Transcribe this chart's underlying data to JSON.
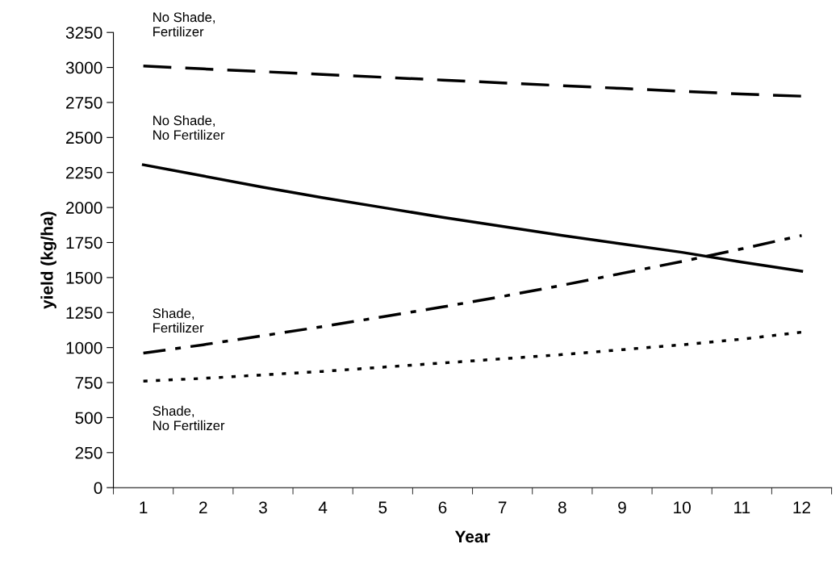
{
  "chart_data": {
    "type": "line",
    "xlabel": "Year",
    "ylabel": "yield (kg/ha)",
    "categories": [
      "1",
      "2",
      "3",
      "4",
      "5",
      "6",
      "7",
      "8",
      "9",
      "10",
      "11",
      "12"
    ],
    "ylim": [
      0,
      3250
    ],
    "yticks": [
      0,
      250,
      500,
      750,
      1000,
      1250,
      1500,
      1750,
      2000,
      2250,
      2500,
      2750,
      3000,
      3250
    ],
    "grid": false,
    "marker": "none",
    "series": [
      {
        "name": "No Shade,\nFertilizer",
        "color": "#000000",
        "line_style": "dashed",
        "values": [
          3010,
          2990,
          2970,
          2950,
          2930,
          2910,
          2890,
          2870,
          2850,
          2830,
          2810,
          2795
        ]
      },
      {
        "name": "No Shade,\nNo Fertilizer",
        "color": "#000000",
        "line_style": "solid",
        "values": [
          2305,
          2225,
          2145,
          2070,
          2000,
          1930,
          1865,
          1800,
          1740,
          1680,
          1610,
          1545
        ]
      },
      {
        "name": "Shade,\nFertilizer",
        "color": "#000000",
        "line_style": "dashdot",
        "values": [
          960,
          1020,
          1085,
          1150,
          1220,
          1290,
          1365,
          1445,
          1530,
          1615,
          1705,
          1800
        ]
      },
      {
        "name": "Shade,\nNo Fertilizer",
        "color": "#000000",
        "line_style": "dotted",
        "values": [
          760,
          780,
          805,
          830,
          860,
          890,
          920,
          950,
          985,
          1020,
          1060,
          1110
        ]
      }
    ]
  }
}
